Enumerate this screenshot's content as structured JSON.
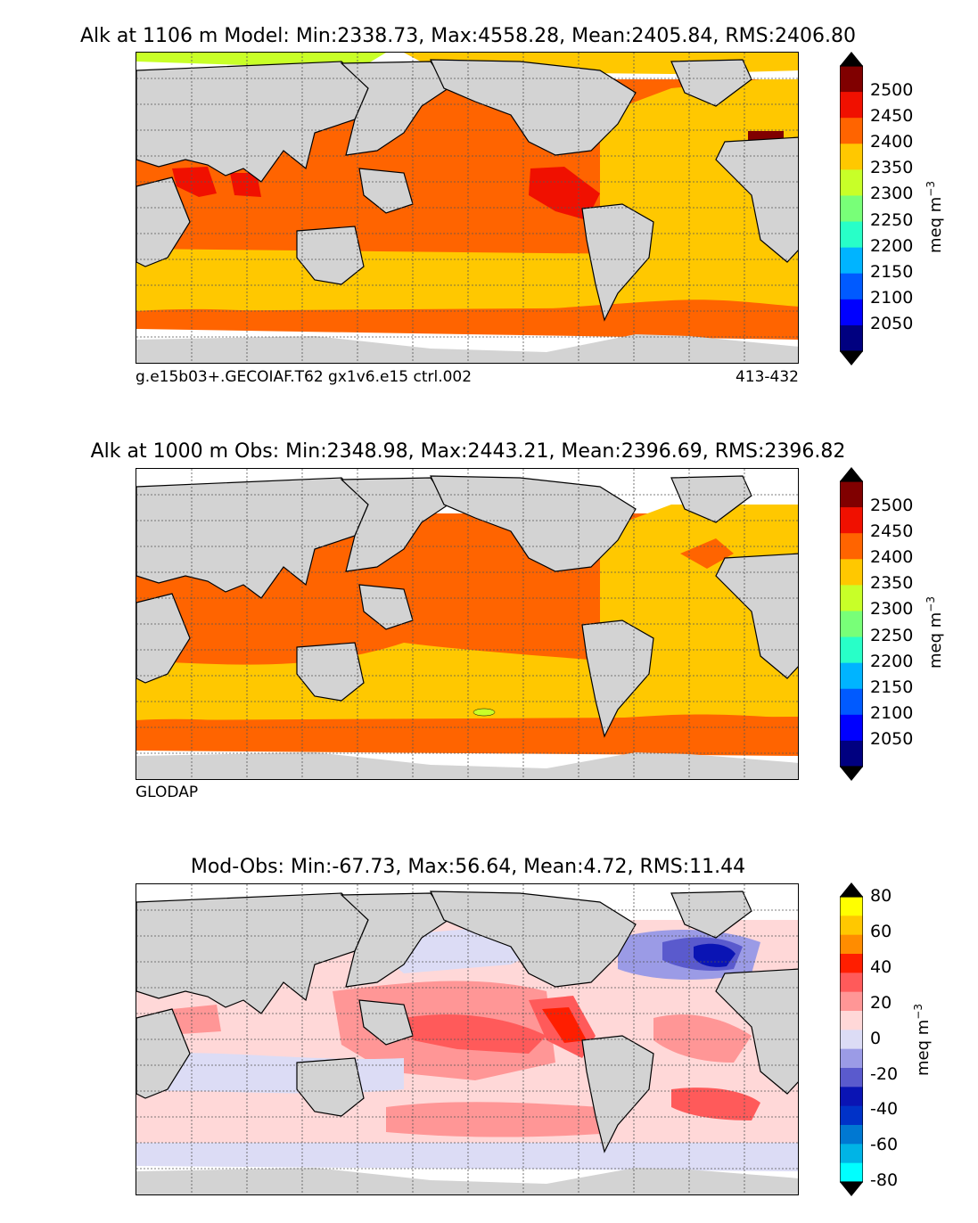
{
  "panels": [
    {
      "title": "Alk at 1106 m Model: Min:2338.73, Max:4558.28, Mean:2405.84, RMS:2406.80",
      "subtitle_left": "g.e15b03+.GECOIAF.T62 gx1v6.e15 ctrl.002",
      "subtitle_right": "413-432",
      "colorbar": {
        "unit": "meq m",
        "unit_sup": "−3",
        "ticks": [
          "2500",
          "2450",
          "2400",
          "2350",
          "2300",
          "2250",
          "2200",
          "2150",
          "2100",
          "2050"
        ],
        "colors": [
          "#800000",
          "#f01000",
          "#ff6400",
          "#ffc800",
          "#c8ff28",
          "#78ff78",
          "#28ffc8",
          "#00b4ff",
          "#005aff",
          "#0000ff",
          "#000080"
        ]
      }
    },
    {
      "title": "Alk at 1000 m Obs: Min:2348.98, Max:2443.21, Mean:2396.69, RMS:2396.82",
      "subtitle_left": "GLODAP",
      "subtitle_right": "",
      "colorbar": {
        "unit": "meq m",
        "unit_sup": "−3",
        "ticks": [
          "2500",
          "2450",
          "2400",
          "2350",
          "2300",
          "2250",
          "2200",
          "2150",
          "2100",
          "2050"
        ],
        "colors": [
          "#800000",
          "#f01000",
          "#ff6400",
          "#ffc800",
          "#c8ff28",
          "#78ff78",
          "#28ffc8",
          "#00b4ff",
          "#005aff",
          "#0000ff",
          "#000080"
        ]
      }
    },
    {
      "title": "Mod-Obs: Min:-67.73, Max:56.64, Mean:4.72, RMS:11.44",
      "subtitle_left": "",
      "subtitle_right": "",
      "colorbar": {
        "unit": "meq m",
        "unit_sup": "−3",
        "ticks": [
          "80",
          "60",
          "40",
          "20",
          "0",
          "-20",
          "-40",
          "-60",
          "-80"
        ],
        "colors": [
          "#ffff00",
          "#ffc800",
          "#ff8c00",
          "#ff1e00",
          "#ff5a5a",
          "#ff9696",
          "#ffd8d8",
          "#dcdcf5",
          "#9b9be6",
          "#5a5acd",
          "#0a14b4",
          "#0032c8",
          "#0078d2",
          "#00b4e6",
          "#00ffff"
        ]
      }
    }
  ],
  "chart_data": [
    {
      "type": "heatmap",
      "title": "Alk at 1106 m Model: Min:2338.73, Max:4558.28, Mean:2405.84, RMS:2406.80",
      "stats": {
        "min": 2338.73,
        "max": 4558.28,
        "mean": 2405.84,
        "rms": 2406.8
      },
      "depth_m": 1106,
      "colorbar_ticks": [
        2050,
        2100,
        2150,
        2200,
        2250,
        2300,
        2350,
        2400,
        2450,
        2500
      ],
      "colorbar_unit": "meq m−3",
      "source": "g.e15b03+.GECOIAF.T62 gx1v6.e15 ctrl.002",
      "years": "413-432"
    },
    {
      "type": "heatmap",
      "title": "Alk at 1000 m Obs: Min:2348.98, Max:2443.21, Mean:2396.69, RMS:2396.82",
      "stats": {
        "min": 2348.98,
        "max": 2443.21,
        "mean": 2396.69,
        "rms": 2396.82
      },
      "depth_m": 1000,
      "colorbar_ticks": [
        2050,
        2100,
        2150,
        2200,
        2250,
        2300,
        2350,
        2400,
        2450,
        2500
      ],
      "colorbar_unit": "meq m−3",
      "source": "GLODAP"
    },
    {
      "type": "heatmap",
      "title": "Mod-Obs: Min:-67.73, Max:56.64, Mean:4.72, RMS:11.44",
      "stats": {
        "min": -67.73,
        "max": 56.64,
        "mean": 4.72,
        "rms": 11.44
      },
      "colorbar_ticks": [
        -80,
        -60,
        -40,
        -20,
        0,
        20,
        40,
        60,
        80
      ],
      "colorbar_unit": "meq m−3"
    }
  ]
}
